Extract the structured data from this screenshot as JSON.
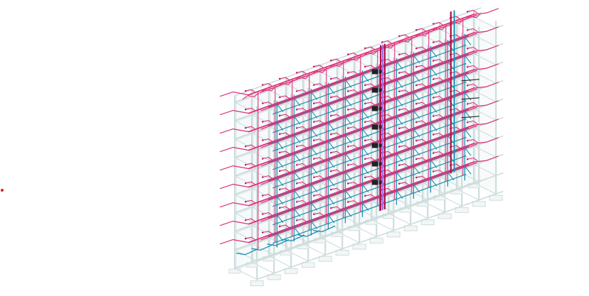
{
  "model_view": {
    "floors": 9,
    "bays": 14,
    "colors": {
      "background": "#ffffff",
      "structure": "#cfdcdc",
      "structure_fill": "#e6f0f0",
      "supply_pipe": "#e0307a",
      "supply_pipe_dark": "#b0104e",
      "return_pipe": "#1f8fb0",
      "riser_highlight": "#a070e0",
      "equipment": "#222222",
      "marker": "#e02020"
    },
    "marker_icon": "red-point-marker-icon"
  }
}
